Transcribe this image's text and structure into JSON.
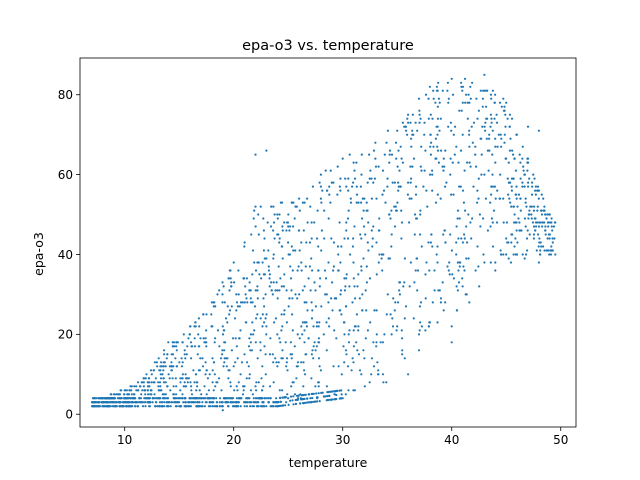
{
  "chart_data": {
    "type": "scatter",
    "title": "epa-o3 vs. temperature",
    "xlabel": "temperature",
    "ylabel": "epa-o3",
    "xlim": [
      5.9,
      51.4
    ],
    "ylim": [
      -3.2,
      89.2
    ],
    "xticks": [
      10,
      20,
      30,
      40,
      50
    ],
    "yticks": [
      0,
      20,
      40,
      60,
      80
    ],
    "marker_color": "#1f77b4",
    "grid": false,
    "legend": "none",
    "lower_envelope": [
      [
        7,
        2
      ],
      [
        9,
        2
      ],
      [
        19,
        2
      ],
      [
        24,
        2
      ],
      [
        30,
        4
      ],
      [
        34,
        8
      ],
      [
        37,
        16
      ],
      [
        40,
        22
      ],
      [
        44,
        36
      ],
      [
        48,
        38
      ],
      [
        49.5,
        40
      ]
    ],
    "upper_envelope": [
      [
        7,
        3
      ],
      [
        8,
        4
      ],
      [
        10,
        6
      ],
      [
        12,
        10
      ],
      [
        14,
        18
      ],
      [
        16,
        22
      ],
      [
        18,
        28
      ],
      [
        20,
        38
      ],
      [
        21,
        43
      ],
      [
        22,
        52
      ],
      [
        26,
        54
      ],
      [
        28,
        60
      ],
      [
        30,
        64
      ],
      [
        33,
        68
      ],
      [
        36,
        75
      ],
      [
        38,
        82
      ],
      [
        40,
        84
      ],
      [
        43,
        85
      ],
      [
        45,
        78
      ],
      [
        47,
        64
      ],
      [
        49,
        50
      ],
      [
        49.5,
        48
      ]
    ],
    "outliers": [
      [
        22,
        65
      ],
      [
        23,
        66
      ],
      [
        19,
        1
      ],
      [
        38,
        23
      ],
      [
        35,
        22
      ],
      [
        41,
        32
      ],
      [
        44,
        38
      ],
      [
        43,
        38
      ],
      [
        46,
        40
      ],
      [
        48,
        71
      ],
      [
        47,
        72
      ],
      [
        44,
        67
      ],
      [
        48.5,
        52
      ],
      [
        45,
        44
      ],
      [
        49,
        45
      ],
      [
        42,
        57
      ],
      [
        39,
        74
      ],
      [
        37,
        79
      ],
      [
        25,
        47
      ],
      [
        28,
        57
      ],
      [
        29,
        58
      ],
      [
        31,
        63
      ],
      [
        33,
        64
      ],
      [
        35,
        71
      ],
      [
        36,
        73
      ],
      [
        26.5,
        53
      ],
      [
        24,
        50
      ],
      [
        40,
        18
      ],
      [
        36,
        10
      ]
    ]
  }
}
